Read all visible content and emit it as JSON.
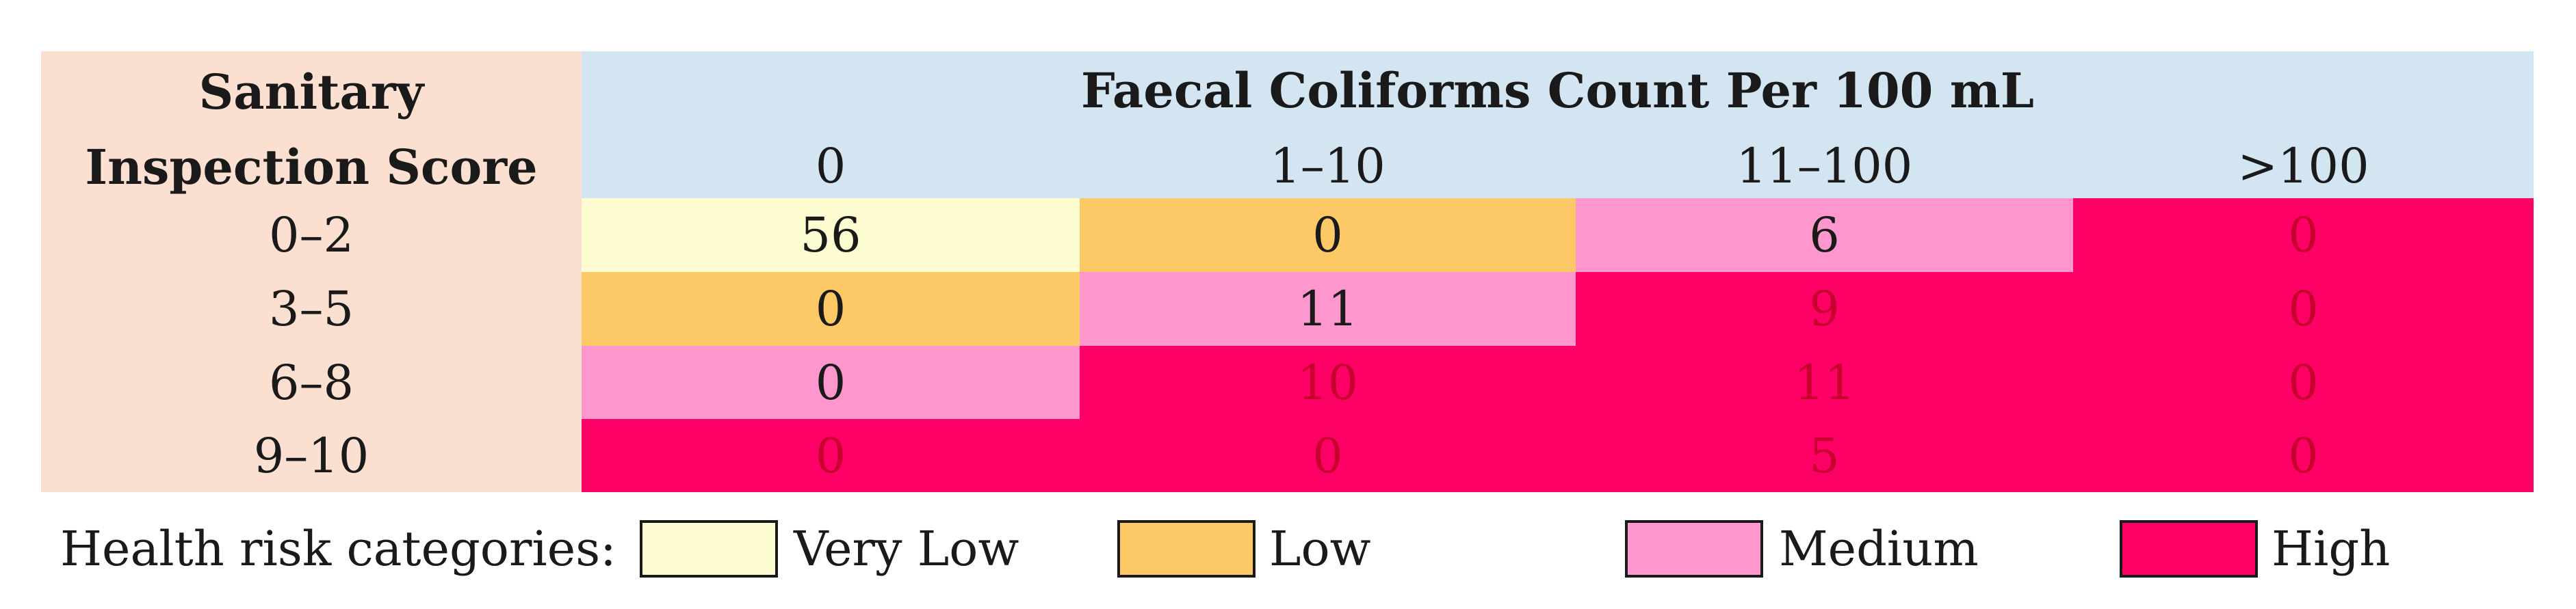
{
  "table": {
    "row_header": {
      "line1": "Sanitary",
      "line2": "Inspection Score"
    },
    "column_group_header": "Faecal Coliforms Count Per 100 mL",
    "columns": [
      "0",
      "1–10",
      "11–100",
      ">100"
    ],
    "rows": [
      {
        "label": "0–2",
        "values": [
          "56",
          "0",
          "6",
          "0"
        ],
        "risk": [
          "very-low",
          "low",
          "medium",
          "high"
        ]
      },
      {
        "label": "3–5",
        "values": [
          "0",
          "11",
          "9",
          "0"
        ],
        "risk": [
          "low",
          "medium",
          "high",
          "high"
        ]
      },
      {
        "label": "6–8",
        "values": [
          "0",
          "10",
          "11",
          "0"
        ],
        "risk": [
          "medium",
          "high",
          "high",
          "high"
        ]
      },
      {
        "label": "9–10",
        "values": [
          "0",
          "0",
          "5",
          "0"
        ],
        "risk": [
          "high",
          "high",
          "high",
          "high"
        ]
      }
    ]
  },
  "legend": {
    "title": "Health risk categories:",
    "items": [
      {
        "label": "Very Low",
        "color": "#fefdd2"
      },
      {
        "label": "Low",
        "color": "#fdc866"
      },
      {
        "label": "Medium",
        "color": "#fd97cd"
      },
      {
        "label": "High",
        "color": "#fc0066"
      }
    ]
  },
  "colors": {
    "very-low": "#fefdd2",
    "low": "#fdc866",
    "medium": "#fd97cd",
    "high": "#fc0066",
    "row_header_bg": "#fbdfd1",
    "column_header_bg": "#d4e5f2",
    "high_text": "#c8002e"
  }
}
